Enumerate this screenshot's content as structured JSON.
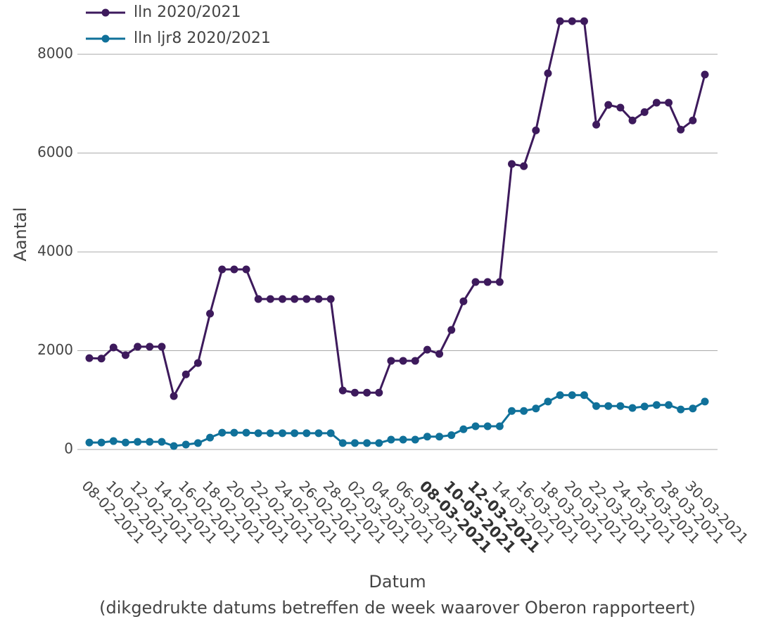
{
  "chart_data": {
    "type": "line",
    "y_label": "Aantal",
    "x_label": "Datum",
    "x_label_note": "(dikgedrukte datums betreffen de week waarover Oberon rapporteert)",
    "categories": [
      "08-02-2021",
      null,
      "10-02-2021",
      null,
      "12-02-2021",
      null,
      "14-02-2021",
      null,
      "16-02-2021",
      null,
      "18-02-2021",
      null,
      "20-02-2021",
      null,
      "22-02-2021",
      null,
      "24-02-2021",
      null,
      "26-02-2021",
      null,
      "28-02-2021",
      null,
      "02-03-2021",
      null,
      "04-03-2021",
      null,
      "06-03-2021",
      null,
      "08-03-2021",
      null,
      "10-03-2021",
      null,
      "12-03-2021",
      null,
      "14-03-2021",
      null,
      "16-03-2021",
      null,
      "18-03-2021",
      null,
      "20-03-2021",
      null,
      "22-03-2021",
      null,
      "24-03-2021",
      null,
      "26-03-2021",
      null,
      "28-03-2021",
      null,
      "30-03-2021",
      null
    ],
    "bold_categories": [
      "08-03-2021",
      "10-03-2021",
      "12-03-2021"
    ],
    "series": [
      {
        "name": "lln 2020/2021",
        "color": "#3d1a5c",
        "values": [
          1850,
          1840,
          2065,
          1910,
          2080,
          2080,
          2080,
          1080,
          1520,
          1750,
          2750,
          3645,
          3645,
          3645,
          3045,
          3045,
          3045,
          3045,
          3045,
          3045,
          3045,
          1195,
          1150,
          1150,
          1150,
          1795,
          1795,
          1795,
          2020,
          1935,
          2420,
          3000,
          3390,
          3390,
          3390,
          5780,
          5735,
          6460,
          7615,
          8670,
          8670,
          8670,
          6575,
          6975,
          6920,
          6660,
          6830,
          7020,
          7020,
          6475,
          6660,
          7590
        ]
      },
      {
        "name": "lln ljr8 2020/2021",
        "color": "#10719a",
        "values": [
          140,
          140,
          170,
          140,
          155,
          155,
          155,
          70,
          100,
          130,
          240,
          340,
          340,
          340,
          330,
          330,
          330,
          330,
          330,
          330,
          330,
          130,
          130,
          130,
          130,
          200,
          200,
          200,
          260,
          260,
          290,
          410,
          470,
          470,
          470,
          780,
          780,
          830,
          970,
          1100,
          1100,
          1100,
          880,
          880,
          880,
          840,
          870,
          900,
          900,
          810,
          830,
          970
        ]
      }
    ],
    "ylim": [
      0,
      8800
    ],
    "yticks": [
      0,
      2000,
      4000,
      6000,
      8000
    ],
    "grid": true,
    "legend": "top-left"
  }
}
